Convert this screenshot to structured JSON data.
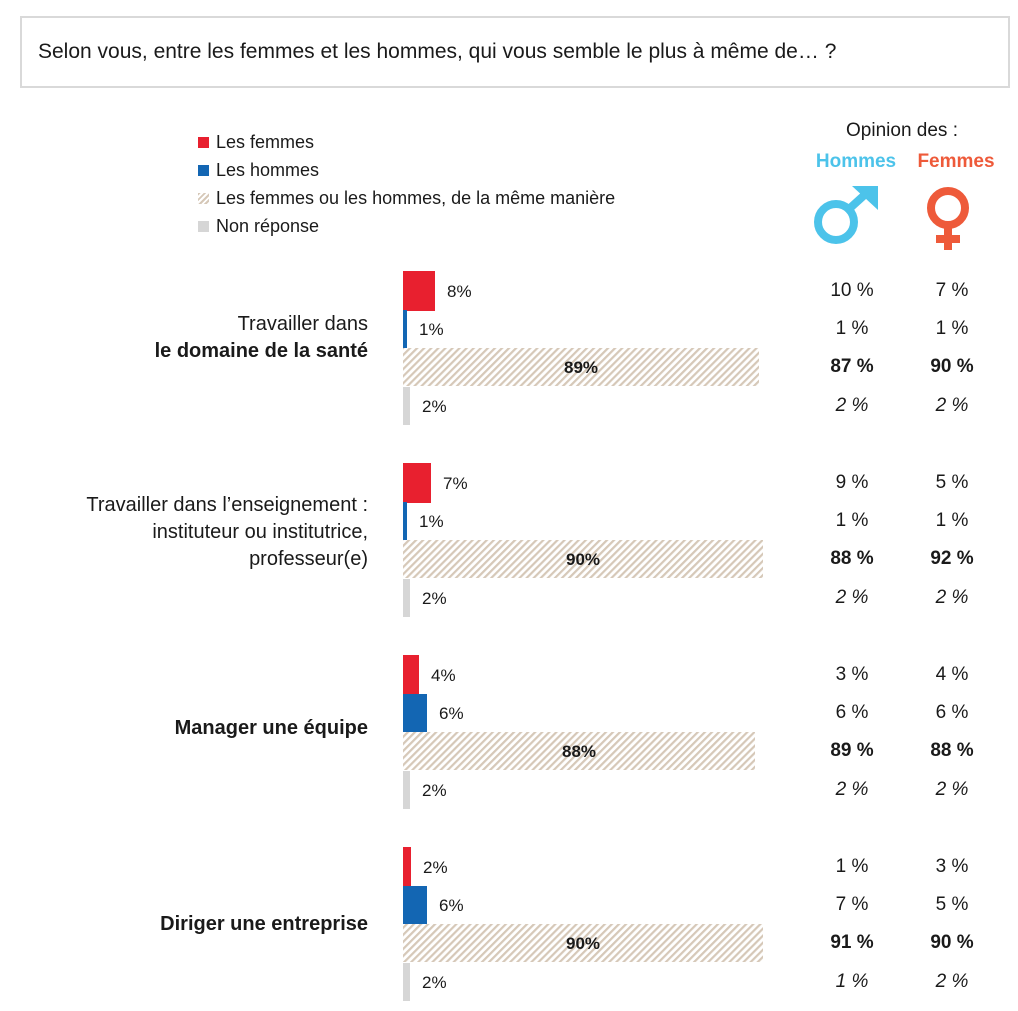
{
  "question": "Selon vous, entre les femmes et les hommes, qui vous semble le plus à même de… ?",
  "legend": [
    {
      "label": "Les femmes",
      "color": "#e8202f"
    },
    {
      "label": "Les hommes",
      "color": "#1366b3"
    },
    {
      "label": "Les femmes ou les hommes, de la même manière",
      "color": "#d6c8b8"
    },
    {
      "label": "Non réponse",
      "color": "#d6d6d6"
    }
  ],
  "opinion": {
    "title": "Opinion des :",
    "hommes_label": "Hommes",
    "femmes_label": "Femmes",
    "hommes_color": "#4cc3ea",
    "femmes_color": "#ee5a3a"
  },
  "chart_data": {
    "type": "bar",
    "orientation": "horizontal",
    "series_names": [
      "Les femmes",
      "Les hommes",
      "Les femmes ou les hommes, de la même manière",
      "Non réponse"
    ],
    "groups": [
      {
        "label_line1": "Travailler dans",
        "label_line2": "le domaine de la santé",
        "label_line3": "",
        "values": [
          8,
          1,
          89,
          2
        ],
        "value_labels": [
          "8%",
          "1%",
          "89%",
          "2%"
        ],
        "hommes": [
          "10 %",
          "1 %",
          "87 %",
          "2 %"
        ],
        "femmes": [
          "7 %",
          "1 %",
          "90 %",
          "2 %"
        ]
      },
      {
        "label_line1": "Travailler dans l’enseignement :",
        "label_line2": "instituteur ou institutrice,",
        "label_line3": "professeur(e)",
        "values": [
          7,
          1,
          90,
          2
        ],
        "value_labels": [
          "7%",
          "1%",
          "90%",
          "2%"
        ],
        "hommes": [
          "9 %",
          "1 %",
          "88 %",
          "2 %"
        ],
        "femmes": [
          "5 %",
          "1 %",
          "92 %",
          "2 %"
        ]
      },
      {
        "label_line1": "",
        "label_line2": "Manager une équipe",
        "label_line3": "",
        "values": [
          4,
          6,
          88,
          2
        ],
        "value_labels": [
          "4%",
          "6%",
          "88%",
          "2%"
        ],
        "hommes": [
          "3 %",
          "6 %",
          "89 %",
          "2 %"
        ],
        "femmes": [
          "4 %",
          "6 %",
          "88 %",
          "2 %"
        ]
      },
      {
        "label_line1": "",
        "label_line2": "Diriger une entreprise",
        "label_line3": "",
        "values": [
          2,
          6,
          90,
          2
        ],
        "value_labels": [
          "2%",
          "6%",
          "90%",
          "2%"
        ],
        "hommes": [
          "1 %",
          "7 %",
          "91 %",
          "1 %"
        ],
        "femmes": [
          "3 %",
          "5 %",
          "90 %",
          "2 %"
        ]
      }
    ],
    "xlim": [
      0,
      100
    ]
  }
}
